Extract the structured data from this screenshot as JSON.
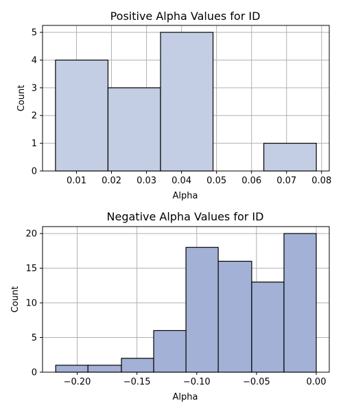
{
  "chart_data": [
    {
      "type": "bar",
      "title": "Positive Alpha Values for ID",
      "xlabel": "Alpha",
      "ylabel": "Count",
      "bins": [
        {
          "x0": 0.004,
          "x1": 0.019,
          "count": 4
        },
        {
          "x0": 0.019,
          "x1": 0.034,
          "count": 3
        },
        {
          "x0": 0.034,
          "x1": 0.049,
          "count": 5
        },
        {
          "x0": 0.049,
          "x1": 0.0635,
          "count": 0
        },
        {
          "x0": 0.0635,
          "x1": 0.0785,
          "count": 1
        }
      ],
      "xlim": [
        0.0003,
        0.0822
      ],
      "ylim": [
        0,
        5.25
      ],
      "xticks": [
        0.01,
        0.02,
        0.03,
        0.04,
        0.05,
        0.06,
        0.07,
        0.08
      ],
      "xtick_labels": [
        "0.01",
        "0.02",
        "0.03",
        "0.04",
        "0.05",
        "0.06",
        "0.07",
        "0.08"
      ],
      "yticks": [
        0,
        1,
        2,
        3,
        4,
        5
      ],
      "ytick_labels": [
        "0",
        "1",
        "2",
        "3",
        "4",
        "5"
      ],
      "grid": true,
      "bar_color": "#c3cde3"
    },
    {
      "type": "bar",
      "title": "Negative Alpha Values for ID",
      "xlabel": "Alpha",
      "ylabel": "Count",
      "bins": [
        {
          "x0": -0.218,
          "x1": -0.191,
          "count": 1
        },
        {
          "x0": -0.191,
          "x1": -0.163,
          "count": 1
        },
        {
          "x0": -0.163,
          "x1": -0.136,
          "count": 2
        },
        {
          "x0": -0.136,
          "x1": -0.109,
          "count": 6
        },
        {
          "x0": -0.109,
          "x1": -0.082,
          "count": 18
        },
        {
          "x0": -0.082,
          "x1": -0.054,
          "count": 16
        },
        {
          "x0": -0.054,
          "x1": -0.027,
          "count": 13
        },
        {
          "x0": -0.027,
          "x1": 0.0,
          "count": 20
        }
      ],
      "xlim": [
        -0.229,
        0.0109
      ],
      "ylim": [
        0,
        21
      ],
      "xticks": [
        -0.2,
        -0.15,
        -0.1,
        -0.05,
        0.0
      ],
      "xtick_labels": [
        "−0.20",
        "−0.15",
        "−0.10",
        "−0.05",
        "0.00"
      ],
      "yticks": [
        0,
        5,
        10,
        15,
        20
      ],
      "ytick_labels": [
        "0",
        "5",
        "10",
        "15",
        "20"
      ],
      "grid": true,
      "bar_color": "#a3b1d6"
    }
  ]
}
